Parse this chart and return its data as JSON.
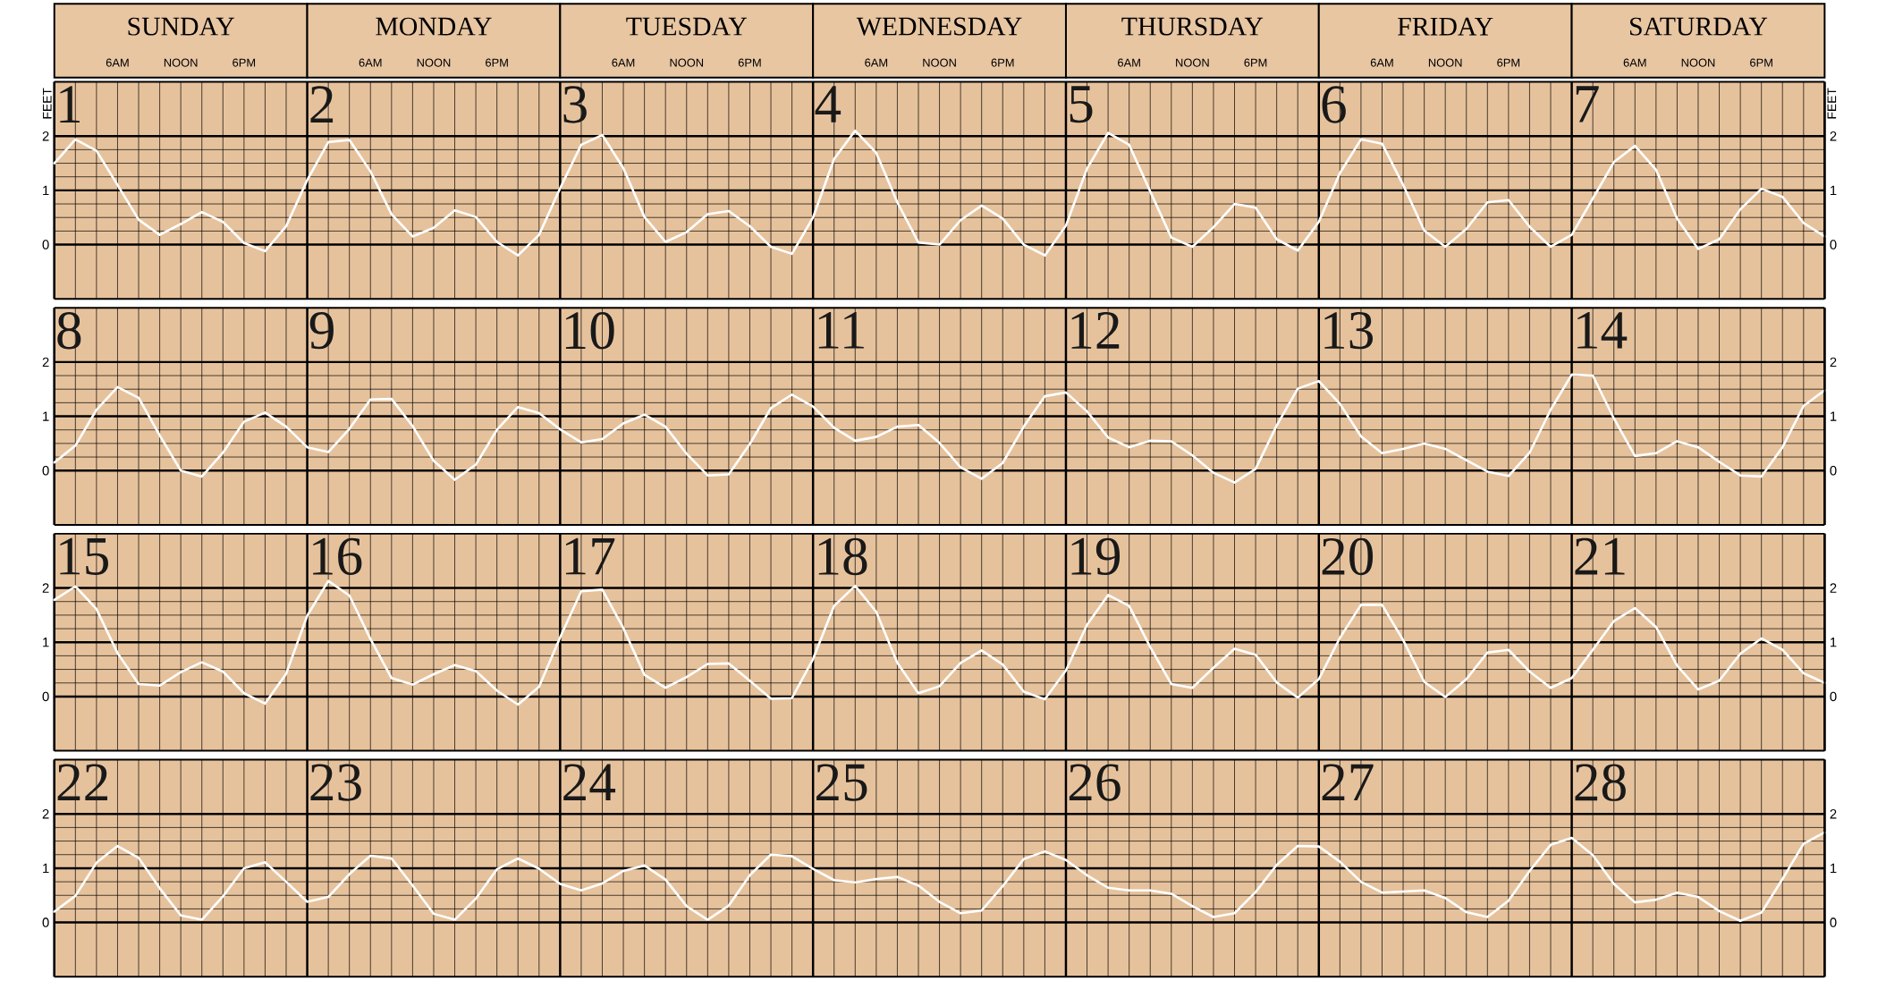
{
  "chart_data": [
    {
      "type": "line",
      "ylabel": "FEET",
      "y2label": "FEET",
      "grid": true,
      "marker": "none",
      "annotations": [
        "SUNDAY",
        "MONDAY",
        "TUESDAY",
        "WEDNESDAY",
        "THURSDAY",
        "FRIDAY",
        "SATURDAY",
        "6AM",
        "NOON",
        "6PM",
        "6AM",
        "NOON",
        "6PM",
        "6AM",
        "NOON",
        "6PM",
        "6AM",
        "NOON",
        "6PM",
        "6AM",
        "NOON",
        "6PM",
        "6AM",
        "NOON",
        "6PM",
        "6AM",
        "NOON",
        "6PM",
        "1",
        "2",
        "3",
        "4",
        "5",
        "6",
        "7"
      ],
      "categories": [
        null,
        null,
        null,
        null,
        null,
        null,
        null,
        null,
        null,
        null,
        null,
        null,
        null,
        null,
        null,
        null,
        null,
        null,
        null,
        null,
        null,
        null,
        null,
        null,
        null,
        null,
        null,
        null,
        null,
        null,
        null,
        null,
        null,
        null,
        null,
        null,
        null,
        null,
        null,
        null,
        null,
        null,
        null,
        null,
        null,
        null,
        null,
        null,
        null,
        null,
        null,
        null,
        null,
        null,
        null,
        null,
        null,
        null,
        null,
        null,
        null,
        null,
        null,
        null,
        null,
        null,
        null,
        null,
        null,
        null,
        null,
        null,
        null,
        null,
        null,
        null,
        null,
        null,
        null,
        null,
        null,
        null,
        null,
        null,
        null
      ],
      "ylim": [
        -1,
        3
      ],
      "y2lim": [
        -1,
        3
      ],
      "yticks": [
        0,
        1,
        2
      ],
      "y2ticks": [
        0,
        1,
        2
      ],
      "series": [
        {
          "color": "#ffffff",
          "values": [
            1.5,
            1.94,
            1.73,
            1.1,
            0.46,
            0.18,
            0.38,
            0.6,
            0.42,
            0.03,
            -0.12,
            0.34,
            1.19,
            1.89,
            1.93,
            1.35,
            0.56,
            0.15,
            0.31,
            0.63,
            0.51,
            0.05,
            -0.2,
            0.18,
            1.04,
            1.84,
            2.02,
            1.41,
            0.51,
            0.05,
            0.23,
            0.56,
            0.62,
            0.34,
            -0.04,
            -0.17,
            0.5,
            1.58,
            2.1,
            1.69,
            0.78,
            0.04,
            0.0,
            0.45,
            0.72,
            0.48,
            0.0,
            -0.2,
            0.35,
            1.4,
            2.06,
            1.84,
            0.98,
            0.13,
            -0.04,
            0.32,
            0.75,
            0.68,
            0.1,
            -0.11,
            0.42,
            1.32,
            1.94,
            1.86,
            1.1,
            0.26,
            -0.04,
            0.29,
            0.78,
            0.82,
            0.33,
            -0.04,
            0.18,
            0.85,
            1.52,
            1.82,
            1.38,
            0.48,
            -0.08,
            0.1,
            0.65,
            1.03,
            0.88,
            0.4,
            0.15
          ]
        }
      ]
    },
    {
      "type": "line",
      "grid": true,
      "marker": "none",
      "annotations": [
        "8",
        "9",
        "10",
        "11",
        "12",
        "13",
        "14"
      ],
      "categories": [
        null,
        null,
        null,
        null,
        null,
        null,
        null,
        null,
        null,
        null,
        null,
        null,
        null,
        null,
        null,
        null,
        null,
        null,
        null,
        null,
        null,
        null,
        null,
        null,
        null,
        null,
        null,
        null,
        null,
        null,
        null,
        null,
        null,
        null,
        null,
        null,
        null,
        null,
        null,
        null,
        null,
        null,
        null,
        null,
        null,
        null,
        null,
        null,
        null,
        null,
        null,
        null,
        null,
        null,
        null,
        null,
        null,
        null,
        null,
        null,
        null,
        null,
        null,
        null,
        null,
        null,
        null,
        null,
        null,
        null,
        null,
        null,
        null,
        null,
        null,
        null,
        null,
        null,
        null,
        null,
        null,
        null,
        null,
        null,
        null
      ],
      "ylim": [
        -1,
        3
      ],
      "y2lim": [
        -1,
        3
      ],
      "yticks": [
        0,
        1,
        2
      ],
      "y2ticks": [
        0,
        1,
        2
      ],
      "series": [
        {
          "color": "#ffffff",
          "values": [
            0.15,
            0.46,
            1.12,
            1.54,
            1.34,
            0.65,
            0.0,
            -0.11,
            0.33,
            0.9,
            1.07,
            0.81,
            0.43,
            0.34,
            0.77,
            1.31,
            1.32,
            0.82,
            0.18,
            -0.17,
            0.11,
            0.75,
            1.17,
            1.06,
            0.76,
            0.52,
            0.58,
            0.87,
            1.03,
            0.81,
            0.31,
            -0.09,
            -0.07,
            0.49,
            1.15,
            1.4,
            1.18,
            0.79,
            0.55,
            0.62,
            0.81,
            0.84,
            0.51,
            0.06,
            -0.15,
            0.14,
            0.81,
            1.37,
            1.44,
            1.09,
            0.61,
            0.43,
            0.55,
            0.54,
            0.28,
            -0.04,
            -0.22,
            0.03,
            0.83,
            1.51,
            1.65,
            1.23,
            0.63,
            0.32,
            0.4,
            0.5,
            0.4,
            0.19,
            -0.02,
            -0.1,
            0.33,
            1.12,
            1.77,
            1.75,
            0.96,
            0.27,
            0.32,
            0.54,
            0.43,
            0.16,
            -0.09,
            -0.11,
            0.43,
            1.19,
            1.48
          ]
        }
      ]
    },
    {
      "type": "line",
      "grid": true,
      "marker": "none",
      "annotations": [
        "15",
        "16",
        "17",
        "18",
        "19",
        "20",
        "21"
      ],
      "categories": [
        null,
        null,
        null,
        null,
        null,
        null,
        null,
        null,
        null,
        null,
        null,
        null,
        null,
        null,
        null,
        null,
        null,
        null,
        null,
        null,
        null,
        null,
        null,
        null,
        null,
        null,
        null,
        null,
        null,
        null,
        null,
        null,
        null,
        null,
        null,
        null,
        null,
        null,
        null,
        null,
        null,
        null,
        null,
        null,
        null,
        null,
        null,
        null,
        null,
        null,
        null,
        null,
        null,
        null,
        null,
        null,
        null,
        null,
        null,
        null,
        null,
        null,
        null,
        null,
        null,
        null,
        null,
        null,
        null,
        null,
        null,
        null,
        null,
        null,
        null,
        null,
        null,
        null,
        null,
        null,
        null,
        null,
        null,
        null,
        null
      ],
      "ylim": [
        -1,
        3
      ],
      "y2lim": [
        -1,
        3
      ],
      "yticks": [
        0,
        1,
        2
      ],
      "y2ticks": [
        0,
        1,
        2
      ],
      "series": [
        {
          "color": "#ffffff",
          "values": [
            1.78,
            2.03,
            1.61,
            0.8,
            0.23,
            0.2,
            0.45,
            0.63,
            0.46,
            0.06,
            -0.13,
            0.42,
            1.49,
            2.13,
            1.86,
            1.06,
            0.34,
            0.22,
            0.41,
            0.58,
            0.47,
            0.11,
            -0.15,
            0.18,
            1.09,
            1.94,
            1.97,
            1.26,
            0.4,
            0.16,
            0.36,
            0.6,
            0.61,
            0.29,
            -0.04,
            -0.03,
            0.69,
            1.67,
            2.04,
            1.56,
            0.62,
            0.06,
            0.19,
            0.62,
            0.85,
            0.59,
            0.09,
            -0.05,
            0.48,
            1.32,
            1.87,
            1.67,
            0.91,
            0.23,
            0.16,
            0.53,
            0.88,
            0.77,
            0.26,
            -0.02,
            0.32,
            1.08,
            1.69,
            1.69,
            1.04,
            0.27,
            -0.01,
            0.32,
            0.81,
            0.86,
            0.46,
            0.16,
            0.34,
            0.86,
            1.39,
            1.63,
            1.28,
            0.57,
            0.13,
            0.29,
            0.79,
            1.07,
            0.86,
            0.43,
            0.25
          ]
        }
      ]
    },
    {
      "type": "line",
      "grid": true,
      "marker": "none",
      "annotations": [
        "22",
        "23",
        "24",
        "25",
        "26",
        "27",
        "28"
      ],
      "categories": [
        null,
        null,
        null,
        null,
        null,
        null,
        null,
        null,
        null,
        null,
        null,
        null,
        null,
        null,
        null,
        null,
        null,
        null,
        null,
        null,
        null,
        null,
        null,
        null,
        null,
        null,
        null,
        null,
        null,
        null,
        null,
        null,
        null,
        null,
        null,
        null,
        null,
        null,
        null,
        null,
        null,
        null,
        null,
        null,
        null,
        null,
        null,
        null,
        null,
        null,
        null,
        null,
        null,
        null,
        null,
        null,
        null,
        null,
        null,
        null,
        null,
        null,
        null,
        null,
        null,
        null,
        null,
        null,
        null,
        null,
        null,
        null,
        null,
        null,
        null,
        null,
        null,
        null,
        null,
        null,
        null,
        null,
        null,
        null,
        null
      ],
      "ylim": [
        -1,
        3
      ],
      "y2lim": [
        -1,
        3
      ],
      "yticks": [
        0,
        1,
        2
      ],
      "y2ticks": [
        0,
        1,
        2
      ],
      "series": [
        {
          "color": "#ffffff",
          "values": [
            0.2,
            0.49,
            1.1,
            1.41,
            1.19,
            0.63,
            0.13,
            0.05,
            0.48,
            1.0,
            1.11,
            0.75,
            0.38,
            0.47,
            0.89,
            1.23,
            1.18,
            0.68,
            0.16,
            0.05,
            0.44,
            0.98,
            1.18,
            0.99,
            0.71,
            0.59,
            0.72,
            0.95,
            1.05,
            0.79,
            0.3,
            0.05,
            0.31,
            0.87,
            1.25,
            1.22,
            0.99,
            0.78,
            0.74,
            0.8,
            0.84,
            0.68,
            0.38,
            0.17,
            0.22,
            0.67,
            1.17,
            1.31,
            1.15,
            0.87,
            0.64,
            0.59,
            0.59,
            0.53,
            0.3,
            0.1,
            0.17,
            0.56,
            1.06,
            1.41,
            1.4,
            1.12,
            0.75,
            0.55,
            0.57,
            0.59,
            0.45,
            0.19,
            0.1,
            0.4,
            0.95,
            1.43,
            1.56,
            1.24,
            0.71,
            0.37,
            0.42,
            0.55,
            0.47,
            0.21,
            0.03,
            0.18,
            0.8,
            1.45,
            1.66
          ]
        }
      ]
    }
  ]
}
